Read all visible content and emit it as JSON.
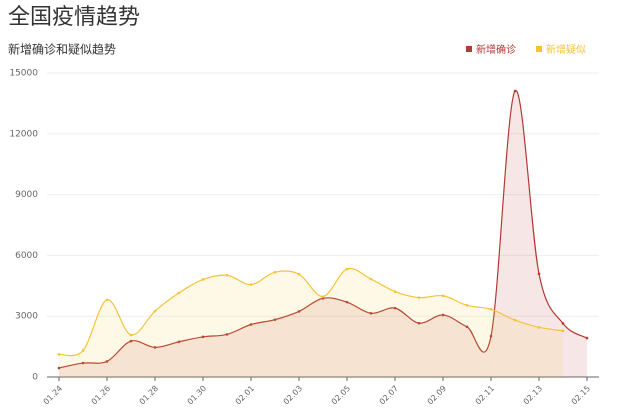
{
  "chart_data": {
    "type": "line",
    "title": "全国疫情趋势",
    "subtitle": "新增确诊和疑似趋势",
    "categories": [
      "01.24",
      null,
      "01.26",
      null,
      "01.28",
      null,
      "01.30",
      null,
      "02.01",
      null,
      "02.03",
      null,
      "02.05",
      null,
      "02.07",
      null,
      "02.09",
      null,
      "02.11",
      null,
      "02.13",
      null,
      "02.15"
    ],
    "series": [
      {
        "name": "新增确诊",
        "color": "#b23a33",
        "values": [
          444,
          688,
          769,
          1771,
          1459,
          1737,
          1982,
          2102,
          2590,
          2829,
          3235,
          3887,
          3694,
          3143,
          3399,
          2656,
          3062,
          2478,
          2015,
          14108,
          5090,
          2641,
          1920
        ]
      },
      {
        "name": "新增疑似",
        "color": "#f5c33a",
        "values": [
          1118,
          1309,
          3806,
          2077,
          3248,
          4148,
          4812,
          5019,
          4562,
          5173,
          5072,
          3971,
          5328,
          4833,
          4214,
          3916,
          4008,
          3536,
          3342,
          2807,
          2450,
          2277,
          null
        ]
      }
    ],
    "ylim": [
      0,
      15000
    ],
    "yticks": [
      0,
      3000,
      6000,
      9000,
      12000,
      15000
    ],
    "grid": true,
    "legend": "top-right"
  }
}
